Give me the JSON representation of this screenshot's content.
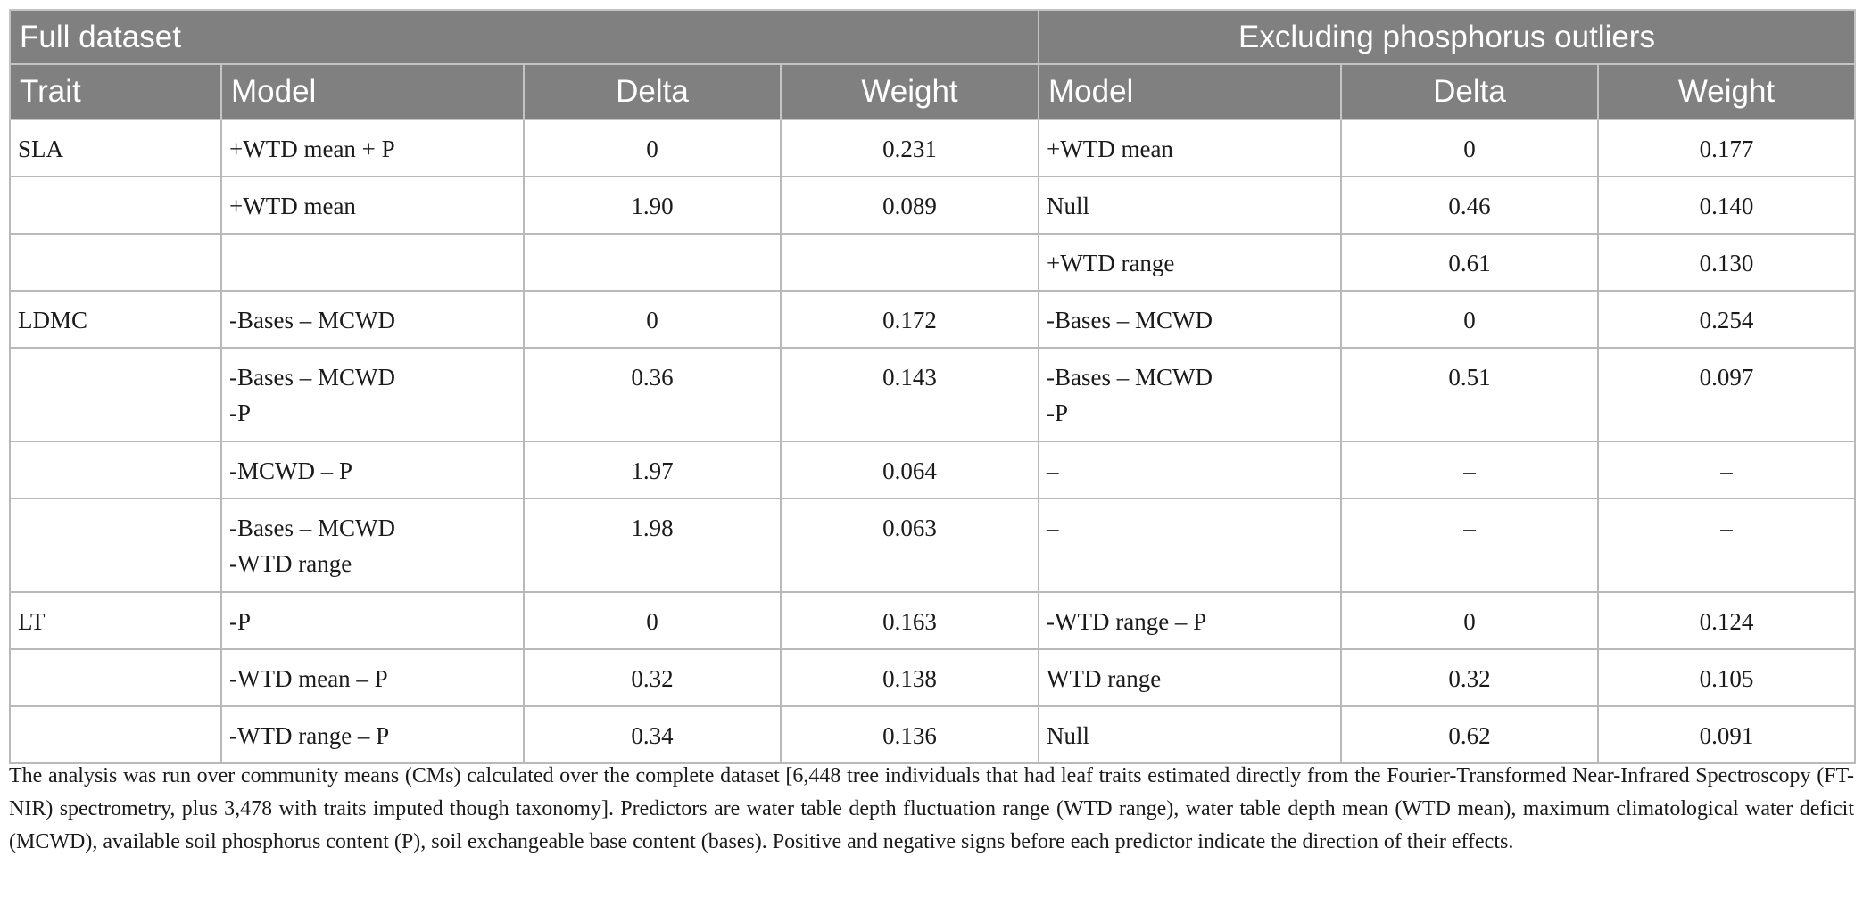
{
  "table": {
    "group_headers": {
      "full": "Full dataset",
      "excluding": "Excluding phosphorus outliers"
    },
    "columns": {
      "trait": "Trait",
      "full_model": "Model",
      "full_delta": "Delta",
      "full_weight": "Weight",
      "ex_model": "Model",
      "ex_delta": "Delta",
      "ex_weight": "Weight"
    },
    "rows": [
      {
        "trait": "SLA",
        "full_model": [
          "+WTD mean + P"
        ],
        "full_delta": "0",
        "full_weight": "0.231",
        "ex_model": [
          "+WTD mean"
        ],
        "ex_delta": "0",
        "ex_weight": "0.177"
      },
      {
        "trait": "",
        "full_model": [
          "+WTD mean"
        ],
        "full_delta": "1.90",
        "full_weight": "0.089",
        "ex_model": [
          "Null"
        ],
        "ex_delta": "0.46",
        "ex_weight": "0.140"
      },
      {
        "trait": "",
        "full_model": [
          ""
        ],
        "full_delta": "",
        "full_weight": "",
        "ex_model": [
          "+WTD range"
        ],
        "ex_delta": "0.61",
        "ex_weight": "0.130"
      },
      {
        "trait": "LDMC",
        "full_model": [
          "-Bases – MCWD"
        ],
        "full_delta": "0",
        "full_weight": "0.172",
        "ex_model": [
          "-Bases – MCWD"
        ],
        "ex_delta": "0",
        "ex_weight": "0.254"
      },
      {
        "trait": "",
        "full_model": [
          "-Bases – MCWD",
          "-P"
        ],
        "full_delta": "0.36",
        "full_weight": "0.143",
        "ex_model": [
          "-Bases – MCWD",
          "-P"
        ],
        "ex_delta": "0.51",
        "ex_weight": "0.097"
      },
      {
        "trait": "",
        "full_model": [
          "-MCWD – P"
        ],
        "full_delta": "1.97",
        "full_weight": "0.064",
        "ex_model": [
          "–"
        ],
        "ex_delta": "–",
        "ex_weight": "–"
      },
      {
        "trait": "",
        "full_model": [
          "-Bases – MCWD",
          "-WTD range"
        ],
        "full_delta": "1.98",
        "full_weight": "0.063",
        "ex_model": [
          "–"
        ],
        "ex_delta": "–",
        "ex_weight": "–"
      },
      {
        "trait": "LT",
        "full_model": [
          "-P"
        ],
        "full_delta": "0",
        "full_weight": "0.163",
        "ex_model": [
          "-WTD range – P"
        ],
        "ex_delta": "0",
        "ex_weight": "0.124"
      },
      {
        "trait": "",
        "full_model": [
          "-WTD mean – P"
        ],
        "full_delta": "0.32",
        "full_weight": "0.138",
        "ex_model": [
          "WTD range"
        ],
        "ex_delta": "0.32",
        "ex_weight": "0.105"
      },
      {
        "trait": "",
        "full_model": [
          "-WTD range – P"
        ],
        "full_delta": "0.34",
        "full_weight": "0.136",
        "ex_model": [
          "Null"
        ],
        "ex_delta": "0.62",
        "ex_weight": "0.091"
      }
    ]
  },
  "footnote": "The analysis was run over community means (CMs) calculated over the complete dataset [6,448 tree individuals that had leaf traits estimated directly from the Fourier-Transformed Near-Infrared Spectroscopy (FT-NIR) spectrometry, plus 3,478 with traits imputed though taxonomy]. Predictors are water table depth fluctuation range (WTD range), water table depth mean (WTD mean), maximum climatological water deficit (MCWD), available soil phosphorus content (P), soil exchangeable base content (bases). Positive and negative signs before each predictor indicate the direction of their effects."
}
